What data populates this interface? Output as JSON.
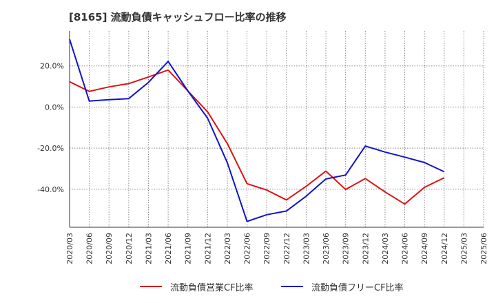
{
  "title": "[8165]  流動負債キャッシュフロー比率の推移",
  "chart_data": {
    "type": "line",
    "x": [
      "2020/03",
      "2020/06",
      "2020/09",
      "2020/12",
      "2021/03",
      "2021/06",
      "2021/09",
      "2021/12",
      "2022/03",
      "2022/06",
      "2022/09",
      "2022/12",
      "2023/03",
      "2023/06",
      "2023/09",
      "2023/12",
      "2024/03",
      "2024/06",
      "2024/09",
      "2024/12",
      "2025/03",
      "2025/06"
    ],
    "ylim": [
      -58.5,
      37
    ],
    "yticks": [
      20,
      0,
      -20,
      -40
    ],
    "ytick_labels": [
      "20.0%",
      "0.0%",
      "-20.0%",
      "-40.0%"
    ],
    "grid": true,
    "legend_position": "bottom",
    "series": [
      {
        "name": "流動負債営業CF比率",
        "color": "#dd1111",
        "values": [
          12.3,
          7.6,
          9.8,
          11.4,
          14.6,
          18.0,
          7.8,
          -2.3,
          -17.8,
          -37.3,
          -40.4,
          -45.2,
          -38.6,
          -31.2,
          -40.1,
          -34.8,
          -41.3,
          -47.2,
          -39.1,
          -34.4,
          null,
          null
        ]
      },
      {
        "name": "流動負債フリーCF比率",
        "color": "#1111cc",
        "values": [
          33.0,
          2.9,
          3.6,
          4.1,
          12.0,
          22.2,
          7.8,
          -5.4,
          -27.1,
          -55.7,
          -52.4,
          -50.6,
          -43.4,
          -35.0,
          -33.1,
          -19.0,
          -21.9,
          -24.4,
          -27.0,
          -31.5,
          null,
          null
        ]
      }
    ]
  }
}
